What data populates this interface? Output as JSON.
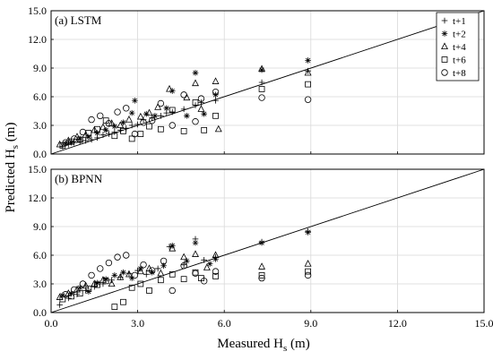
{
  "chart_data": [
    {
      "type": "scatter",
      "title": "(a) LSTM",
      "xlim": [
        0,
        15
      ],
      "ylim": [
        0,
        15
      ],
      "xticks": [
        "0.0",
        "3.0",
        "6.0",
        "9.0",
        "12.0",
        "15.0"
      ],
      "yticks": [
        "0.0",
        "3.0",
        "6.0",
        "9.0",
        "12.0",
        "15.0"
      ],
      "grid": true,
      "legend_position": "top-right",
      "reference_line": [
        [
          0,
          0
        ],
        [
          15,
          15
        ]
      ],
      "series": [
        {
          "name": "t+1",
          "marker": "plus",
          "points": [
            [
              0.4,
              0.8
            ],
            [
              0.6,
              1.0
            ],
            [
              0.8,
              1.2
            ],
            [
              1.0,
              1.3
            ],
            [
              1.2,
              1.4
            ],
            [
              1.4,
              1.5
            ],
            [
              1.6,
              1.7
            ],
            [
              1.8,
              2.0
            ],
            [
              2.0,
              2.1
            ],
            [
              2.2,
              2.3
            ],
            [
              2.4,
              2.5
            ],
            [
              2.6,
              2.7
            ],
            [
              2.8,
              3.0
            ],
            [
              3.0,
              3.1
            ],
            [
              3.2,
              3.6
            ],
            [
              3.5,
              3.8
            ],
            [
              3.8,
              4.0
            ],
            [
              4.0,
              4.3
            ],
            [
              4.2,
              4.4
            ],
            [
              4.6,
              4.7
            ],
            [
              5.0,
              5.1
            ],
            [
              5.2,
              5.4
            ],
            [
              5.7,
              5.6
            ],
            [
              7.3,
              7.5
            ],
            [
              8.9,
              8.7
            ]
          ]
        },
        {
          "name": "t+2",
          "marker": "asterisk",
          "points": [
            [
              0.5,
              1.1
            ],
            [
              0.7,
              1.2
            ],
            [
              1.0,
              1.6
            ],
            [
              1.3,
              1.8
            ],
            [
              1.6,
              2.2
            ],
            [
              1.9,
              2.5
            ],
            [
              2.2,
              2.9
            ],
            [
              2.5,
              3.3
            ],
            [
              2.8,
              4.3
            ],
            [
              2.9,
              5.6
            ],
            [
              3.3,
              4.2
            ],
            [
              3.6,
              4.0
            ],
            [
              4.0,
              4.8
            ],
            [
              4.2,
              6.6
            ],
            [
              4.7,
              4.0
            ],
            [
              5.0,
              8.5
            ],
            [
              5.3,
              4.2
            ],
            [
              5.7,
              6.2
            ],
            [
              7.3,
              8.8
            ],
            [
              8.9,
              9.8
            ]
          ]
        },
        {
          "name": "t+4",
          "marker": "triangle",
          "points": [
            [
              0.3,
              1.0
            ],
            [
              0.6,
              1.4
            ],
            [
              0.9,
              1.8
            ],
            [
              1.2,
              2.0
            ],
            [
              1.5,
              2.5
            ],
            [
              1.8,
              2.8
            ],
            [
              2.1,
              3.2
            ],
            [
              2.4,
              3.0
            ],
            [
              2.7,
              3.6
            ],
            [
              3.1,
              3.9
            ],
            [
              3.4,
              4.3
            ],
            [
              3.7,
              4.9
            ],
            [
              4.1,
              6.8
            ],
            [
              4.7,
              5.9
            ],
            [
              5.0,
              7.4
            ],
            [
              5.2,
              4.7
            ],
            [
              5.7,
              7.6
            ],
            [
              5.8,
              2.6
            ],
            [
              7.3,
              8.9
            ],
            [
              8.9,
              8.5
            ]
          ]
        },
        {
          "name": "t+6",
          "marker": "square",
          "points": [
            [
              0.4,
              0.9
            ],
            [
              0.7,
              1.3
            ],
            [
              1.0,
              1.5
            ],
            [
              1.3,
              2.2
            ],
            [
              1.6,
              2.6
            ],
            [
              1.9,
              3.5
            ],
            [
              2.2,
              1.9
            ],
            [
              2.5,
              2.4
            ],
            [
              2.8,
              1.6
            ],
            [
              3.1,
              2.1
            ],
            [
              3.4,
              2.9
            ],
            [
              3.8,
              2.6
            ],
            [
              4.2,
              4.6
            ],
            [
              4.6,
              2.4
            ],
            [
              5.0,
              5.4
            ],
            [
              5.3,
              2.5
            ],
            [
              5.7,
              4.0
            ],
            [
              7.3,
              6.8
            ],
            [
              8.9,
              7.3
            ]
          ]
        },
        {
          "name": "t+8",
          "marker": "circle",
          "points": [
            [
              0.5,
              1.2
            ],
            [
              0.8,
              1.6
            ],
            [
              1.1,
              2.3
            ],
            [
              1.4,
              3.6
            ],
            [
              1.7,
              4.0
            ],
            [
              2.0,
              3.2
            ],
            [
              2.3,
              4.4
            ],
            [
              2.6,
              4.8
            ],
            [
              2.9,
              2.1
            ],
            [
              3.2,
              3.3
            ],
            [
              3.5,
              3.5
            ],
            [
              3.8,
              5.3
            ],
            [
              4.2,
              3.0
            ],
            [
              4.6,
              6.2
            ],
            [
              5.0,
              3.4
            ],
            [
              5.2,
              5.8
            ],
            [
              5.7,
              6.5
            ],
            [
              7.3,
              5.9
            ],
            [
              8.9,
              5.7
            ]
          ]
        }
      ]
    },
    {
      "type": "scatter",
      "title": "(b) BPNN",
      "xlim": [
        0,
        15
      ],
      "ylim": [
        0,
        15
      ],
      "xticks": [
        "0.0",
        "3.0",
        "6.0",
        "9.0",
        "12.0",
        "15.0"
      ],
      "yticks": [
        "0.0",
        "3.0",
        "6.0",
        "9.0",
        "12.0",
        "15.0"
      ],
      "grid": true,
      "reference_line": [
        [
          0,
          0
        ],
        [
          15,
          15
        ]
      ],
      "series": [
        {
          "name": "t+1",
          "marker": "plus",
          "points": [
            [
              0.3,
              0.8
            ],
            [
              0.6,
              1.5
            ],
            [
              0.9,
              1.9
            ],
            [
              1.2,
              2.3
            ],
            [
              1.5,
              2.7
            ],
            [
              1.8,
              3.0
            ],
            [
              2.1,
              3.4
            ],
            [
              2.4,
              3.7
            ],
            [
              2.7,
              4.1
            ],
            [
              3.0,
              4.4
            ],
            [
              3.3,
              4.0
            ],
            [
              3.7,
              4.6
            ],
            [
              4.1,
              6.9
            ],
            [
              4.6,
              5.0
            ],
            [
              5.0,
              7.7
            ],
            [
              5.3,
              5.5
            ],
            [
              5.7,
              5.8
            ],
            [
              7.3,
              7.4
            ],
            [
              8.9,
              8.5
            ]
          ]
        },
        {
          "name": "t+2",
          "marker": "asterisk",
          "points": [
            [
              0.4,
              1.8
            ],
            [
              0.7,
              2.0
            ],
            [
              1.0,
              2.6
            ],
            [
              1.3,
              2.2
            ],
            [
              1.6,
              3.1
            ],
            [
              1.9,
              3.5
            ],
            [
              2.2,
              3.9
            ],
            [
              2.5,
              4.2
            ],
            [
              2.8,
              3.6
            ],
            [
              3.1,
              4.6
            ],
            [
              3.5,
              4.2
            ],
            [
              3.9,
              4.9
            ],
            [
              4.2,
              7.0
            ],
            [
              4.7,
              5.4
            ],
            [
              5.0,
              7.3
            ],
            [
              5.5,
              5.1
            ],
            [
              5.7,
              5.6
            ],
            [
              7.3,
              7.3
            ],
            [
              8.9,
              8.4
            ]
          ]
        },
        {
          "name": "t+4",
          "marker": "triangle",
          "points": [
            [
              0.3,
              1.6
            ],
            [
              0.6,
              2.0
            ],
            [
              0.9,
              2.4
            ],
            [
              1.2,
              2.8
            ],
            [
              1.5,
              3.0
            ],
            [
              1.8,
              3.4
            ],
            [
              2.1,
              3.0
            ],
            [
              2.4,
              3.7
            ],
            [
              2.7,
              4.0
            ],
            [
              3.1,
              4.3
            ],
            [
              3.4,
              4.6
            ],
            [
              3.8,
              4.1
            ],
            [
              4.2,
              6.7
            ],
            [
              4.6,
              5.8
            ],
            [
              5.0,
              6.1
            ],
            [
              5.4,
              4.7
            ],
            [
              5.7,
              6.0
            ],
            [
              7.3,
              4.8
            ],
            [
              8.9,
              5.1
            ]
          ]
        },
        {
          "name": "t+6",
          "marker": "square",
          "points": [
            [
              0.4,
              1.4
            ],
            [
              0.7,
              1.7
            ],
            [
              1.0,
              2.0
            ],
            [
              1.3,
              2.5
            ],
            [
              1.6,
              2.9
            ],
            [
              1.9,
              3.3
            ],
            [
              2.2,
              0.6
            ],
            [
              2.5,
              1.1
            ],
            [
              2.8,
              2.6
            ],
            [
              3.1,
              3.0
            ],
            [
              3.4,
              2.3
            ],
            [
              3.8,
              3.4
            ],
            [
              4.2,
              4.0
            ],
            [
              4.6,
              3.5
            ],
            [
              5.0,
              4.2
            ],
            [
              5.2,
              3.6
            ],
            [
              5.7,
              3.8
            ],
            [
              7.3,
              3.9
            ],
            [
              8.9,
              4.3
            ]
          ]
        },
        {
          "name": "t+8",
          "marker": "circle",
          "points": [
            [
              0.5,
              1.9
            ],
            [
              0.8,
              2.4
            ],
            [
              1.1,
              3.0
            ],
            [
              1.4,
              3.9
            ],
            [
              1.7,
              4.6
            ],
            [
              2.0,
              5.2
            ],
            [
              2.3,
              5.8
            ],
            [
              2.6,
              6.0
            ],
            [
              2.9,
              3.9
            ],
            [
              3.2,
              5.0
            ],
            [
              3.5,
              4.4
            ],
            [
              3.9,
              5.4
            ],
            [
              4.2,
              2.3
            ],
            [
              4.6,
              4.9
            ],
            [
              5.0,
              4.1
            ],
            [
              5.3,
              3.3
            ],
            [
              5.7,
              4.3
            ],
            [
              7.3,
              3.6
            ],
            [
              8.9,
              3.9
            ]
          ]
        }
      ]
    }
  ],
  "axes": {
    "xlabel": "Measured H",
    "xlabel_sub": "s",
    "xlabel_unit": " (m)",
    "ylabel": "Predicted H",
    "ylabel_sub": "s",
    "ylabel_unit": " (m)"
  }
}
